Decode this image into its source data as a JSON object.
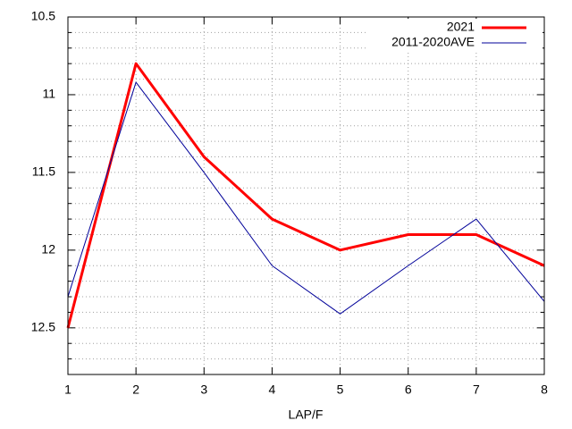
{
  "chart_data": {
    "type": "line",
    "x": [
      1,
      2,
      3,
      4,
      5,
      6,
      7,
      8
    ],
    "xlim": [
      1,
      8
    ],
    "xticks": [
      1,
      2,
      3,
      4,
      5,
      6,
      7,
      8
    ],
    "ylim": [
      12.8,
      10.5
    ],
    "yticks": [
      10.5,
      11,
      11.5,
      12,
      12.5
    ],
    "y_minor_intervals": 5,
    "xlabel": "LAP/F",
    "grid": true,
    "legend": "top-right",
    "series": [
      {
        "name": "2021",
        "color": "#ff0000",
        "width": 3,
        "values": [
          12.5,
          10.8,
          11.4,
          11.8,
          12.0,
          11.9,
          11.9,
          12.1
        ]
      },
      {
        "name": "2011-2020AVE",
        "color": "#000099",
        "width": 1,
        "values": [
          12.3,
          10.92,
          11.5,
          12.1,
          12.41,
          12.1,
          11.8,
          12.33
        ]
      }
    ]
  }
}
